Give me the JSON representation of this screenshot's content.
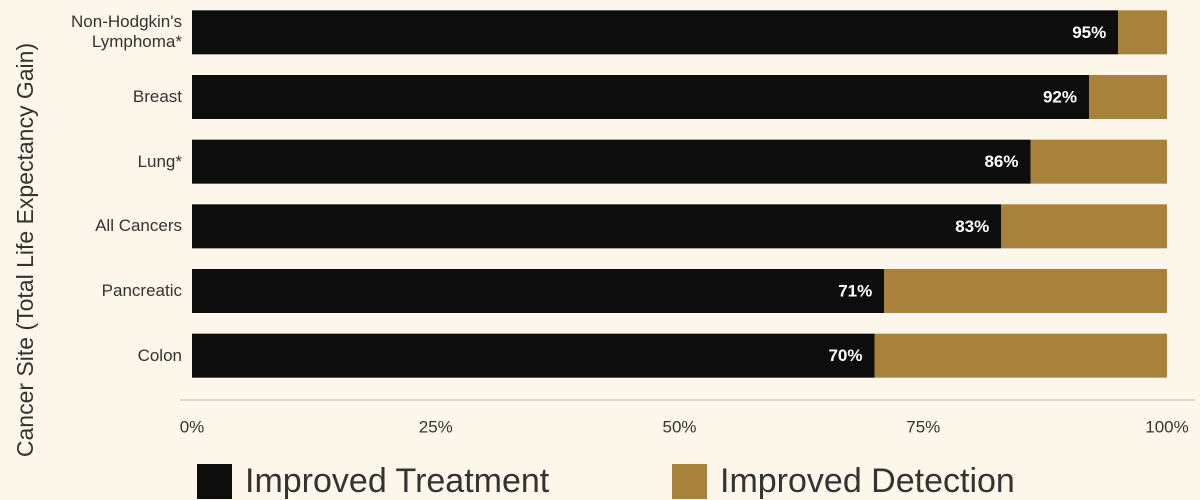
{
  "chart_data": {
    "type": "stacked-barh",
    "y_label": "Cancer Site (Total Life Expectancy Gain)",
    "categories": [
      "Non-Hodgkin's\nLymphoma*",
      "Breast",
      "Lung*",
      "All Cancers",
      "Pancreatic",
      "Colon"
    ],
    "series": [
      {
        "name": "Improved Treatment",
        "color": "#0d0d0d",
        "values": [
          95,
          92,
          86,
          83,
          71,
          70
        ],
        "value_labels": [
          "95%",
          "92%",
          "86%",
          "83%",
          "71%",
          "70%"
        ]
      },
      {
        "name": "Improved Detection",
        "color": "#a8823a",
        "values": [
          5,
          8,
          14,
          17,
          29,
          30
        ]
      }
    ],
    "xlim": [
      0,
      100
    ],
    "xticks": [
      {
        "value": 0,
        "label": "0%"
      },
      {
        "value": 25,
        "label": "25%"
      },
      {
        "value": 50,
        "label": "50%"
      },
      {
        "value": 75,
        "label": "75%"
      },
      {
        "value": 100,
        "label": "100%"
      }
    ],
    "legend": "bottom"
  }
}
